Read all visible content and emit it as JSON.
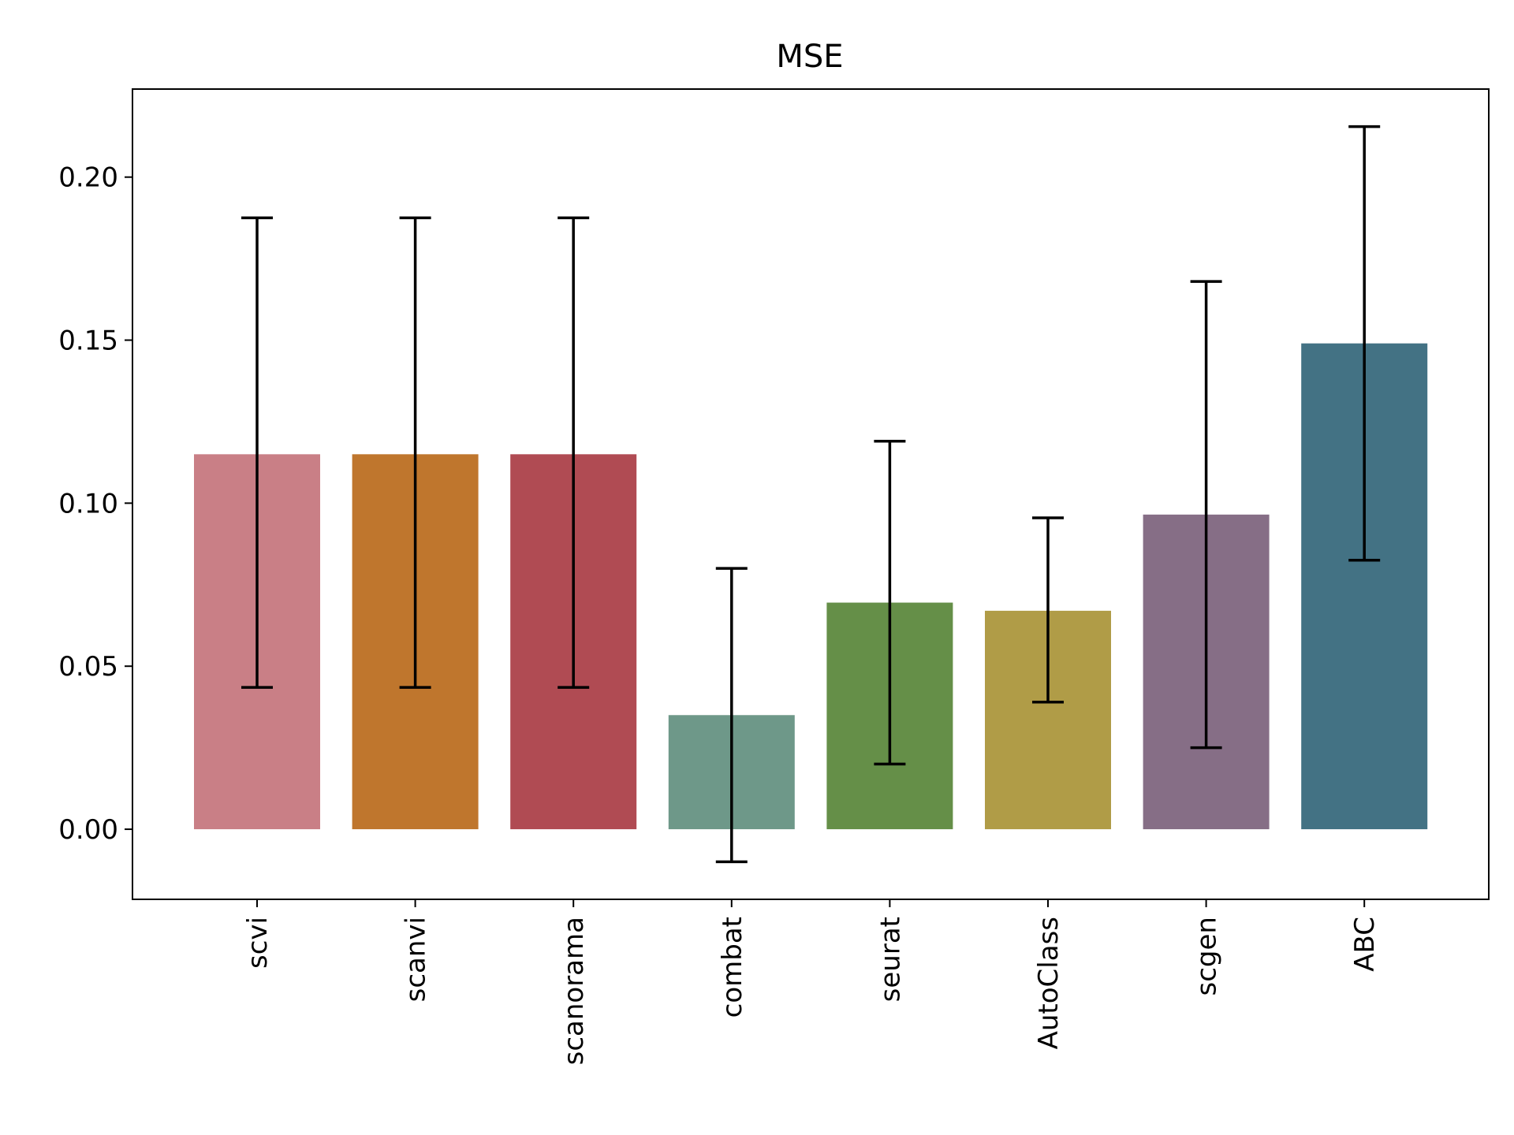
{
  "chart_data": {
    "type": "bar",
    "title": "MSE",
    "xlabel": "",
    "ylabel": "",
    "categories": [
      "scvi",
      "scanvi",
      "scanorama",
      "combat",
      "seurat",
      "AutoClass",
      "scgen",
      "ABC"
    ],
    "values": [
      0.115,
      0.115,
      0.115,
      0.035,
      0.0695,
      0.067,
      0.0965,
      0.149
    ],
    "error_low": [
      0.0435,
      0.0435,
      0.0435,
      -0.01,
      0.02,
      0.039,
      0.025,
      0.0825
    ],
    "error_high": [
      0.1875,
      0.1875,
      0.1875,
      0.08,
      0.119,
      0.0955,
      0.168,
      0.2155
    ],
    "colors": [
      "#c97f86",
      "#bf762d",
      "#b04b53",
      "#6e9889",
      "#658f48",
      "#b09c47",
      "#866e86",
      "#437284"
    ],
    "ylim": [
      -0.0215,
      0.227
    ],
    "yticks": [
      "0.00",
      "0.05",
      "0.10",
      "0.15",
      "0.20"
    ],
    "ytick_values": [
      0.0,
      0.05,
      0.1,
      0.15,
      0.2
    ],
    "grid": false,
    "xtick_rotation": "vertical"
  }
}
